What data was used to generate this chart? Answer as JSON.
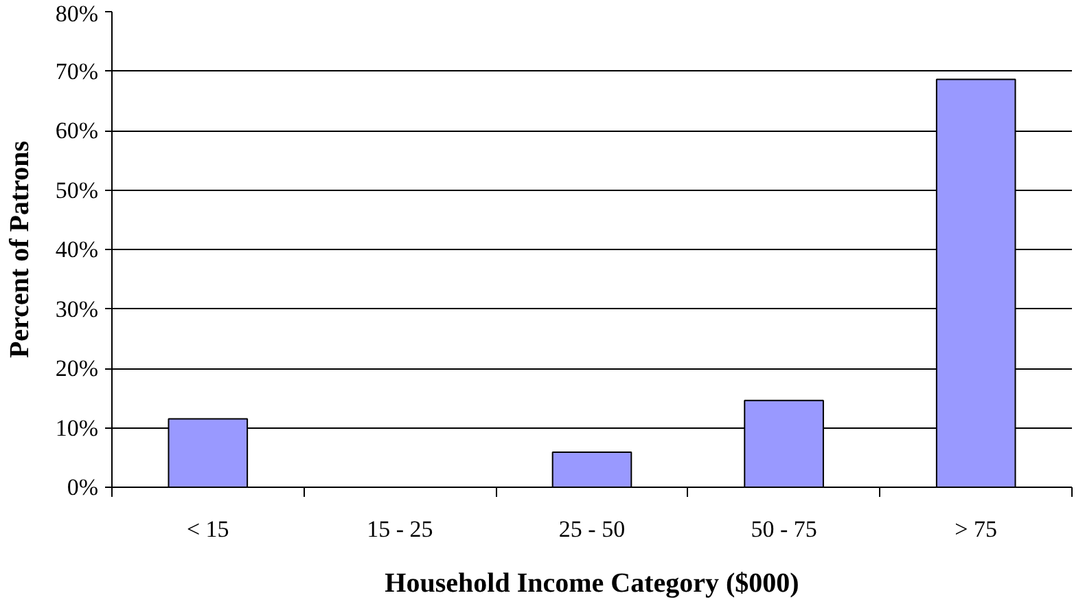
{
  "chart_data": {
    "type": "bar",
    "xlabel": "Household Income Category ($000)",
    "ylabel": "Percent of Patrons",
    "categories": [
      "< 15",
      "15 - 25",
      "25 - 50",
      "50 - 75",
      "> 75"
    ],
    "values": [
      11.5,
      null,
      5.9,
      14.6,
      68.6
    ],
    "color": "#9999ff",
    "ylim": [
      0,
      80
    ],
    "yticks": [
      {
        "value": 0,
        "label": "0%"
      },
      {
        "value": 10,
        "label": "10%"
      },
      {
        "value": 20,
        "label": "20%"
      },
      {
        "value": 30,
        "label": "30%"
      },
      {
        "value": 40,
        "label": "40%"
      },
      {
        "value": 50,
        "label": "50%"
      },
      {
        "value": 60,
        "label": "60%"
      },
      {
        "value": 70,
        "label": "70%"
      },
      {
        "value": 80,
        "label": "80%"
      }
    ],
    "grid": "y"
  }
}
